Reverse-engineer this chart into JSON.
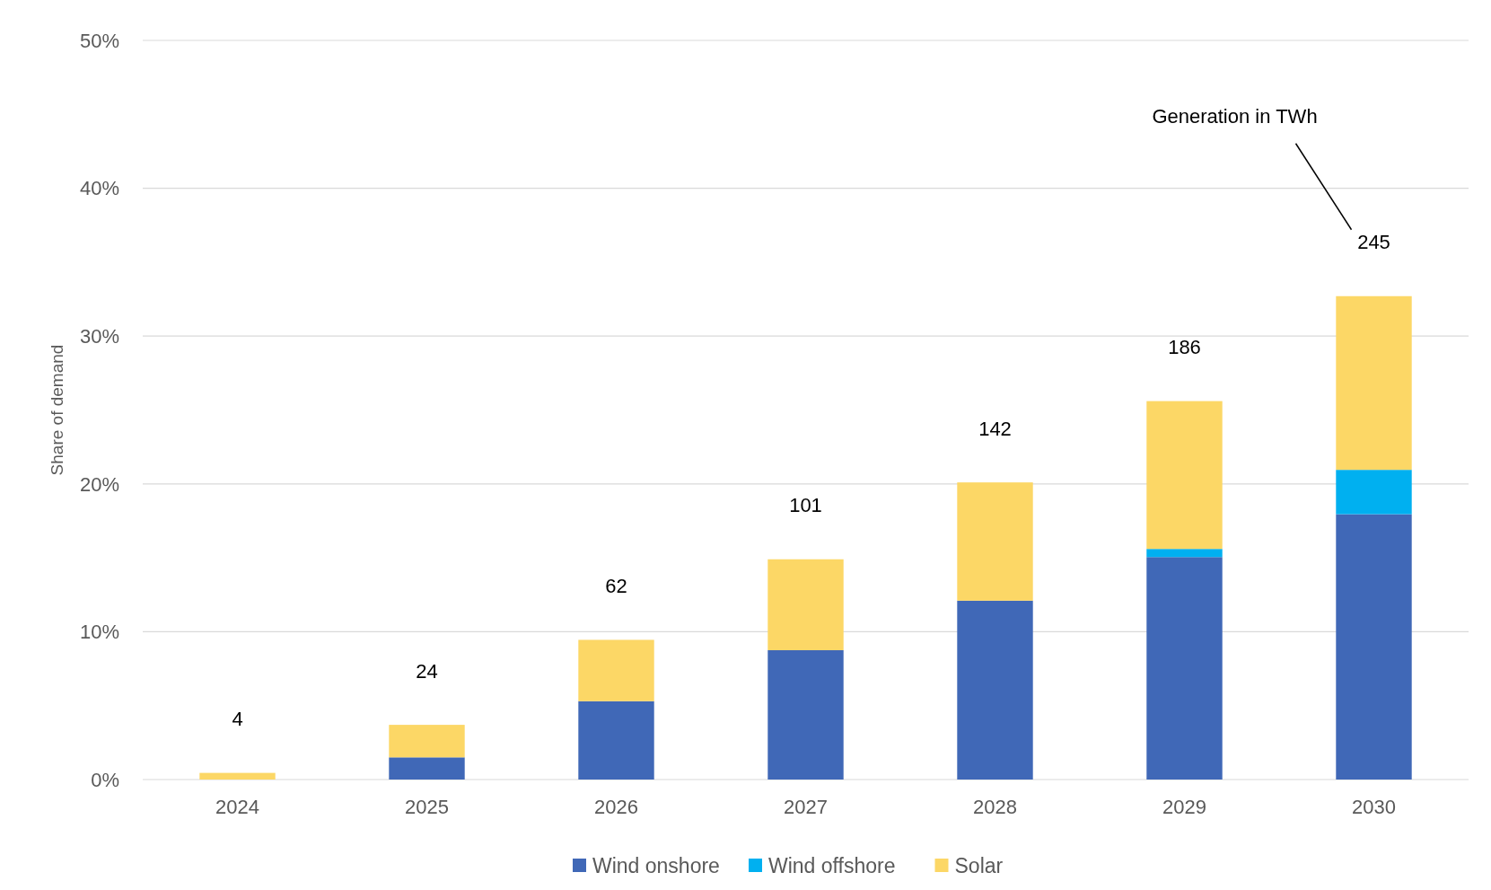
{
  "chart_data": {
    "type": "bar",
    "stacked": true,
    "ylabel": "Share of demand",
    "categories": [
      "2024",
      "2025",
      "2026",
      "2027",
      "2028",
      "2029",
      "2030"
    ],
    "series": [
      {
        "name": "Wind onshore",
        "color": "#4068b7",
        "values": [
          0,
          1.5,
          5.3,
          8.75,
          12.1,
          15.05,
          17.95
        ]
      },
      {
        "name": "Wind offshore",
        "color": "#00b0f0",
        "values": [
          0,
          0,
          0,
          0,
          0,
          0.55,
          3.0
        ]
      },
      {
        "name": "Solar",
        "color": "#fcd766",
        "values": [
          0.45,
          2.2,
          4.15,
          6.15,
          8.0,
          10.0,
          11.75
        ]
      }
    ],
    "ylim": [
      0,
      50
    ],
    "yticks": [
      {
        "value": 0,
        "label": "0%"
      },
      {
        "value": 10,
        "label": "10%"
      },
      {
        "value": 20,
        "label": "20%"
      },
      {
        "value": 30,
        "label": "30%"
      },
      {
        "value": 40,
        "label": "40%"
      },
      {
        "value": 50,
        "label": "50%"
      }
    ],
    "grid": "y",
    "legend": "bottom",
    "annotations": [
      "4",
      "24",
      "62",
      "101",
      "142",
      "186",
      "245",
      "Generation in TWh"
    ]
  }
}
